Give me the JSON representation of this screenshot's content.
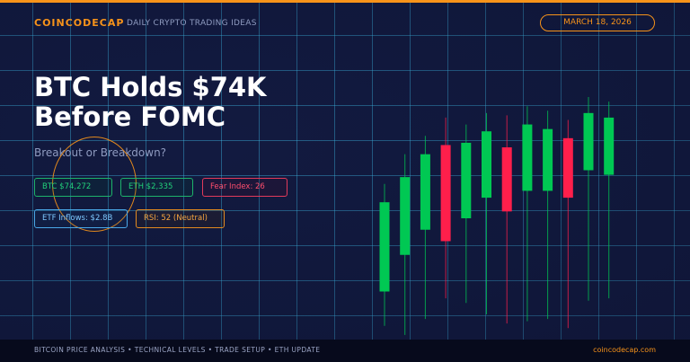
{
  "header": {
    "brand": "COINCODECAP",
    "tagline": "DAILY CRYPTO TRADING IDEAS",
    "date": "MARCH 18, 2026"
  },
  "hero": {
    "headline_line1": "BTC Holds $74K",
    "headline_line2": "Before FOMC",
    "subline": "Breakout or Breakdown?"
  },
  "stats": {
    "btc": "BTC $74,272",
    "eth": "ETH $2,335",
    "fear": "Fear Index: 26",
    "etf": "ETF Inflows: $2.8B",
    "rsi": "RSI: 52 (Neutral)"
  },
  "footer": {
    "topics": "BITCOIN PRICE ANALYSIS  •  TECHNICAL LEVELS  •  TRADE SETUP  •  ETH UPDATE",
    "site": "coincodecap.com"
  },
  "colors": {
    "accent": "#f7931a",
    "bull": "#00c853",
    "bear": "#ff1f4b",
    "background": "#121a40"
  },
  "candles": [
    {
      "open": 2.1,
      "close": 6.0,
      "high": 6.8,
      "low": 0.6
    },
    {
      "open": 3.7,
      "close": 7.1,
      "high": 8.1,
      "low": 0.2
    },
    {
      "open": 4.8,
      "close": 8.1,
      "high": 8.9,
      "low": 0.9
    },
    {
      "open": 8.5,
      "close": 4.3,
      "high": 9.7,
      "low": 1.8
    },
    {
      "open": 5.3,
      "close": 8.6,
      "high": 9.4,
      "low": 1.6
    },
    {
      "open": 6.2,
      "close": 9.1,
      "high": 9.9,
      "low": 1.1
    },
    {
      "open": 8.4,
      "close": 5.6,
      "high": 9.8,
      "low": 0.7
    },
    {
      "open": 6.5,
      "close": 9.4,
      "high": 10.2,
      "low": 0.8
    },
    {
      "open": 6.5,
      "close": 9.2,
      "high": 10.0,
      "low": 0.9
    },
    {
      "open": 8.8,
      "close": 6.2,
      "high": 9.6,
      "low": 0.5
    },
    {
      "open": 7.4,
      "close": 9.9,
      "high": 10.6,
      "low": 1.7
    },
    {
      "open": 7.2,
      "close": 9.7,
      "high": 10.4,
      "low": 1.8
    }
  ]
}
